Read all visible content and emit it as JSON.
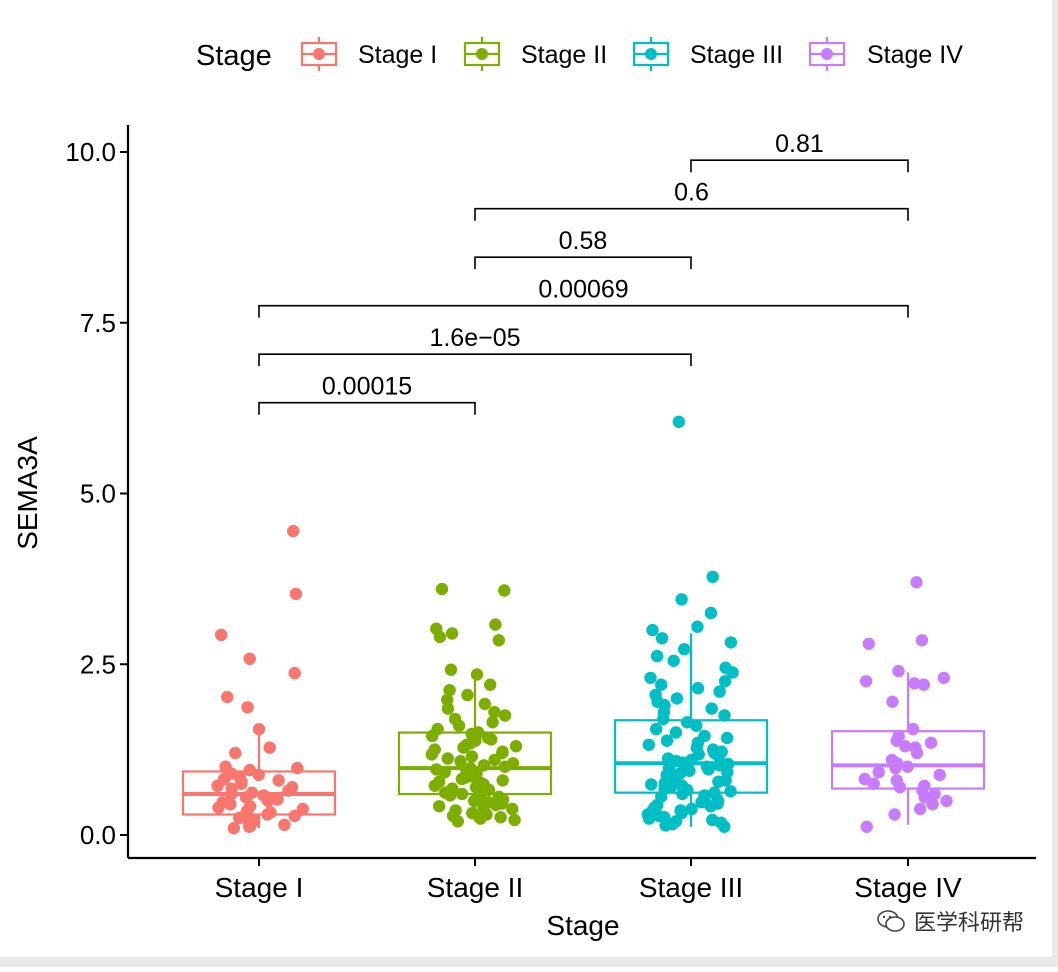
{
  "chart_data": {
    "type": "boxplot",
    "xlabel": "Stage",
    "ylabel": "SEMA3A",
    "ylim": [
      -0.35,
      10.4
    ],
    "yticks": [
      "0.0",
      "2.5",
      "5.0",
      "7.5",
      "10.0"
    ],
    "ytick_values": [
      0,
      2.5,
      5,
      7.5,
      10
    ],
    "categories": [
      "Stage I",
      "Stage II",
      "Stage III",
      "Stage IV"
    ],
    "legend": {
      "title": "Stage",
      "position": "top",
      "entries": [
        "Stage I",
        "Stage II",
        "Stage III",
        "Stage IV"
      ]
    },
    "colors": [
      "#F8766D",
      "#7CAE00",
      "#00BFC4",
      "#C77CFF"
    ],
    "grid": false,
    "series": [
      {
        "name": "Stage I",
        "box": {
          "min": 0.1,
          "q1": 0.3,
          "median": 0.6,
          "q3": 0.93,
          "max": 1.53
        },
        "points": [
          4.45,
          3.53,
          2.93,
          2.58,
          2.37,
          2.02,
          1.87,
          1.55,
          1.28,
          1.2,
          1.0,
          0.98,
          0.95,
          0.9,
          0.88,
          0.85,
          0.82,
          0.8,
          0.78,
          0.75,
          0.72,
          0.7,
          0.68,
          0.65,
          0.62,
          0.6,
          0.58,
          0.55,
          0.52,
          0.5,
          0.48,
          0.45,
          0.42,
          0.4,
          0.38,
          0.35,
          0.33,
          0.3,
          0.28,
          0.25,
          0.22,
          0.2,
          0.18,
          0.15,
          0.13,
          0.12,
          0.1
        ]
      },
      {
        "name": "Stage II",
        "box": {
          "min": 0.2,
          "q1": 0.6,
          "median": 0.98,
          "q3": 1.5,
          "max": 2.42
        },
        "points": [
          3.6,
          3.58,
          3.08,
          3.02,
          2.95,
          2.9,
          2.85,
          2.42,
          2.35,
          2.2,
          2.12,
          2.05,
          1.98,
          1.92,
          1.85,
          1.8,
          1.75,
          1.7,
          1.65,
          1.6,
          1.55,
          1.5,
          1.48,
          1.45,
          1.42,
          1.4,
          1.38,
          1.35,
          1.32,
          1.3,
          1.28,
          1.25,
          1.22,
          1.2,
          1.18,
          1.15,
          1.12,
          1.1,
          1.08,
          1.05,
          1.02,
          1.0,
          0.98,
          0.96,
          0.94,
          0.92,
          0.9,
          0.88,
          0.86,
          0.84,
          0.82,
          0.8,
          0.78,
          0.76,
          0.74,
          0.72,
          0.7,
          0.68,
          0.66,
          0.64,
          0.62,
          0.6,
          0.58,
          0.56,
          0.54,
          0.52,
          0.5,
          0.48,
          0.46,
          0.44,
          0.42,
          0.4,
          0.38,
          0.36,
          0.34,
          0.32,
          0.3,
          0.28,
          0.26,
          0.24,
          0.22,
          0.2
        ]
      },
      {
        "name": "Stage III",
        "box": {
          "min": 0.12,
          "q1": 0.62,
          "median": 1.05,
          "q3": 1.68,
          "max": 2.95
        },
        "points": [
          6.05,
          3.78,
          3.45,
          3.25,
          3.05,
          3.0,
          2.88,
          2.82,
          2.72,
          2.62,
          2.55,
          2.45,
          2.38,
          2.3,
          2.25,
          2.2,
          2.15,
          2.1,
          2.05,
          2.0,
          1.95,
          1.9,
          1.85,
          1.8,
          1.75,
          1.7,
          1.65,
          1.6,
          1.55,
          1.5,
          1.45,
          1.42,
          1.38,
          1.35,
          1.32,
          1.28,
          1.25,
          1.22,
          1.2,
          1.18,
          1.15,
          1.12,
          1.1,
          1.08,
          1.06,
          1.04,
          1.02,
          1.0,
          0.98,
          0.96,
          0.94,
          0.92,
          0.9,
          0.88,
          0.86,
          0.84,
          0.82,
          0.8,
          0.78,
          0.76,
          0.74,
          0.72,
          0.7,
          0.68,
          0.66,
          0.64,
          0.62,
          0.6,
          0.58,
          0.56,
          0.54,
          0.52,
          0.5,
          0.48,
          0.46,
          0.44,
          0.42,
          0.4,
          0.38,
          0.36,
          0.34,
          0.32,
          0.3,
          0.28,
          0.26,
          0.24,
          0.22,
          0.2,
          0.18,
          0.16,
          0.14,
          0.12
        ]
      },
      {
        "name": "Stage IV",
        "box": {
          "min": 0.15,
          "q1": 0.68,
          "median": 1.02,
          "q3": 1.52,
          "max": 2.38
        },
        "points": [
          3.7,
          2.85,
          2.8,
          2.4,
          2.3,
          2.25,
          2.22,
          2.2,
          1.95,
          1.55,
          1.45,
          1.38,
          1.35,
          1.3,
          1.28,
          1.2,
          1.1,
          1.05,
          1.0,
          0.98,
          0.92,
          0.88,
          0.82,
          0.8,
          0.75,
          0.72,
          0.7,
          0.65,
          0.6,
          0.55,
          0.5,
          0.45,
          0.38,
          0.3,
          0.12
        ]
      }
    ],
    "comparisons": [
      {
        "from": "Stage I",
        "to": "Stage II",
        "label": "0.00015",
        "y": 6.33
      },
      {
        "from": "Stage I",
        "to": "Stage III",
        "label": "1.6e−05",
        "y": 7.04
      },
      {
        "from": "Stage I",
        "to": "Stage IV",
        "label": "0.00069",
        "y": 7.75
      },
      {
        "from": "Stage II",
        "to": "Stage III",
        "label": "0.58",
        "y": 8.46
      },
      {
        "from": "Stage II",
        "to": "Stage IV",
        "label": "0.6",
        "y": 9.17
      },
      {
        "from": "Stage III",
        "to": "Stage IV",
        "label": "0.81",
        "y": 9.88
      }
    ]
  },
  "watermark": {
    "text": "医学科研帮",
    "icon": "wechat-icon"
  }
}
